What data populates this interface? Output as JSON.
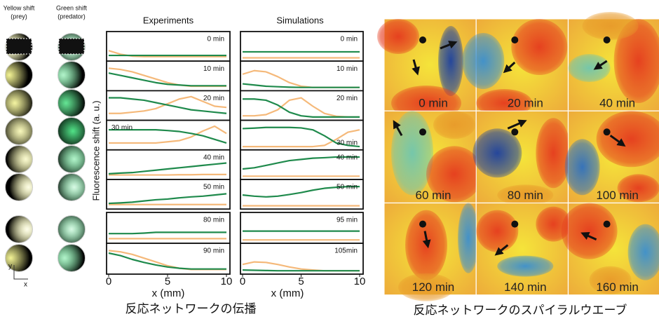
{
  "left": {
    "yellow_label": "Yellow shift",
    "yellow_sub": "(prey)",
    "green_label": "Green shift",
    "green_sub": "(predator)",
    "axis_y": "y",
    "axis_x": "x"
  },
  "y_label": "Fluorescence shift (a. u.)",
  "x_label": "x (mm)",
  "x": [
    0,
    1,
    2,
    3,
    4,
    5,
    6,
    7,
    8,
    9,
    10
  ],
  "xlim": [
    0,
    10
  ],
  "xticks": [
    0,
    5,
    10
  ],
  "ylim": [
    0,
    1
  ],
  "colors": {
    "orange": "#f5b97a",
    "green": "#1f8a4c"
  },
  "experiments": {
    "title": "Experiments",
    "panels": [
      {
        "label": "0 min",
        "orange": [
          0.35,
          0.2,
          0.12,
          0.1,
          0.1,
          0.1,
          0.1,
          0.1,
          0.1,
          0.1,
          0.1
        ],
        "green": [
          0.15,
          0.15,
          0.15,
          0.15,
          0.15,
          0.15,
          0.15,
          0.15,
          0.15,
          0.15,
          0.15
        ]
      },
      {
        "label": "10 min",
        "orange": [
          0.85,
          0.8,
          0.7,
          0.55,
          0.4,
          0.25,
          0.15,
          0.1,
          0.1,
          0.1,
          0.1
        ],
        "green": [
          0.65,
          0.55,
          0.45,
          0.35,
          0.25,
          0.18,
          0.15,
          0.12,
          0.12,
          0.12,
          0.12
        ]
      },
      {
        "label": "20 min",
        "orange": [
          0.2,
          0.2,
          0.25,
          0.3,
          0.4,
          0.6,
          0.8,
          0.9,
          0.7,
          0.5,
          0.45
        ],
        "green": [
          0.85,
          0.85,
          0.8,
          0.75,
          0.65,
          0.55,
          0.45,
          0.35,
          0.3,
          0.25,
          0.2
        ]
      },
      {
        "label": "30 min",
        "orange": [
          0.2,
          0.2,
          0.2,
          0.2,
          0.2,
          0.25,
          0.3,
          0.45,
          0.7,
          0.9,
          0.6
        ],
        "green": [
          0.75,
          0.75,
          0.75,
          0.75,
          0.75,
          0.72,
          0.68,
          0.6,
          0.5,
          0.35,
          0.2
        ]
      },
      {
        "label": "40 min",
        "orange": [
          0.1,
          0.1,
          0.1,
          0.1,
          0.1,
          0.1,
          0.11,
          0.11,
          0.12,
          0.12,
          0.12
        ],
        "green": [
          0.15,
          0.18,
          0.2,
          0.25,
          0.3,
          0.35,
          0.4,
          0.45,
          0.5,
          0.55,
          0.6
        ]
      },
      {
        "label": "50 min",
        "orange": [
          0.1,
          0.1,
          0.1,
          0.1,
          0.1,
          0.1,
          0.1,
          0.1,
          0.1,
          0.1,
          0.1
        ],
        "green": [
          0.15,
          0.17,
          0.2,
          0.25,
          0.3,
          0.33,
          0.38,
          0.42,
          0.45,
          0.5,
          0.55
        ]
      },
      {
        "label": "80 min",
        "orange": [
          0.1,
          0.1,
          0.1,
          0.1,
          0.1,
          0.1,
          0.1,
          0.1,
          0.1,
          0.1,
          0.1
        ],
        "green": [
          0.3,
          0.3,
          0.3,
          0.32,
          0.35,
          0.35,
          0.35,
          0.35,
          0.35,
          0.35,
          0.35
        ]
      },
      {
        "label": "90 min",
        "orange": [
          0.85,
          0.8,
          0.7,
          0.55,
          0.4,
          0.25,
          0.15,
          0.1,
          0.1,
          0.1,
          0.1
        ],
        "green": [
          0.75,
          0.65,
          0.5,
          0.38,
          0.28,
          0.2,
          0.15,
          0.12,
          0.12,
          0.12,
          0.12
        ]
      }
    ]
  },
  "simulations": {
    "title": "Simulations",
    "panels": [
      {
        "label": "0 min",
        "orange": [
          0.05,
          0.05,
          0.05,
          0.05,
          0.05,
          0.05,
          0.05,
          0.05,
          0.05,
          0.05,
          0.05
        ],
        "green": [
          0.3,
          0.3,
          0.3,
          0.3,
          0.3,
          0.3,
          0.3,
          0.3,
          0.3,
          0.3,
          0.3
        ]
      },
      {
        "label": "10 min",
        "orange": [
          0.6,
          0.75,
          0.7,
          0.5,
          0.25,
          0.1,
          0.05,
          0.05,
          0.05,
          0.05,
          0.05
        ],
        "green": [
          0.2,
          0.15,
          0.1,
          0.08,
          0.06,
          0.05,
          0.05,
          0.05,
          0.05,
          0.05,
          0.05
        ]
      },
      {
        "label": "20 min",
        "orange": [
          0.1,
          0.1,
          0.15,
          0.35,
          0.75,
          0.85,
          0.5,
          0.2,
          0.08,
          0.05,
          0.05
        ],
        "green": [
          0.8,
          0.8,
          0.75,
          0.55,
          0.25,
          0.1,
          0.05,
          0.05,
          0.05,
          0.05,
          0.05
        ]
      },
      {
        "label": "30 min",
        "orange": [
          0.05,
          0.05,
          0.05,
          0.05,
          0.05,
          0.05,
          0.05,
          0.1,
          0.35,
          0.65,
          0.75
        ],
        "green": [
          0.8,
          0.82,
          0.85,
          0.85,
          0.85,
          0.83,
          0.75,
          0.5,
          0.2,
          0.1,
          0.05
        ]
      },
      {
        "label": "40 min",
        "orange": [
          0.05,
          0.05,
          0.05,
          0.05,
          0.05,
          0.05,
          0.05,
          0.05,
          0.05,
          0.05,
          0.05
        ],
        "green": [
          0.35,
          0.4,
          0.5,
          0.6,
          0.7,
          0.75,
          0.8,
          0.82,
          0.85,
          0.85,
          0.85
        ]
      },
      {
        "label": "50 min",
        "orange": [
          0.05,
          0.05,
          0.05,
          0.05,
          0.05,
          0.05,
          0.05,
          0.05,
          0.05,
          0.05,
          0.05
        ],
        "green": [
          0.5,
          0.45,
          0.42,
          0.45,
          0.52,
          0.6,
          0.7,
          0.78,
          0.82,
          0.85,
          0.85
        ]
      },
      {
        "label": "95 min",
        "orange": [
          0.05,
          0.05,
          0.05,
          0.05,
          0.05,
          0.05,
          0.05,
          0.05,
          0.05,
          0.05,
          0.05
        ],
        "green": [
          0.4,
          0.4,
          0.4,
          0.4,
          0.4,
          0.4,
          0.4,
          0.4,
          0.4,
          0.4,
          0.4
        ]
      },
      {
        "label": "105min",
        "orange": [
          0.3,
          0.4,
          0.38,
          0.3,
          0.2,
          0.12,
          0.08,
          0.05,
          0.05,
          0.05,
          0.05
        ],
        "green": [
          0.08,
          0.07,
          0.06,
          0.05,
          0.05,
          0.05,
          0.05,
          0.05,
          0.05,
          0.05,
          0.05
        ]
      }
    ]
  },
  "caption_left": "反応ネットワークの伝播",
  "waves": {
    "caption": "反応ネットワークのスパイラルウエーブ",
    "frames": [
      {
        "label": "0 min"
      },
      {
        "label": "20 min"
      },
      {
        "label": "40 min"
      },
      {
        "label": "60 min"
      },
      {
        "label": "80 min"
      },
      {
        "label": "100 min"
      },
      {
        "label": "120 min"
      },
      {
        "label": "140 min"
      },
      {
        "label": "160 min"
      }
    ]
  }
}
